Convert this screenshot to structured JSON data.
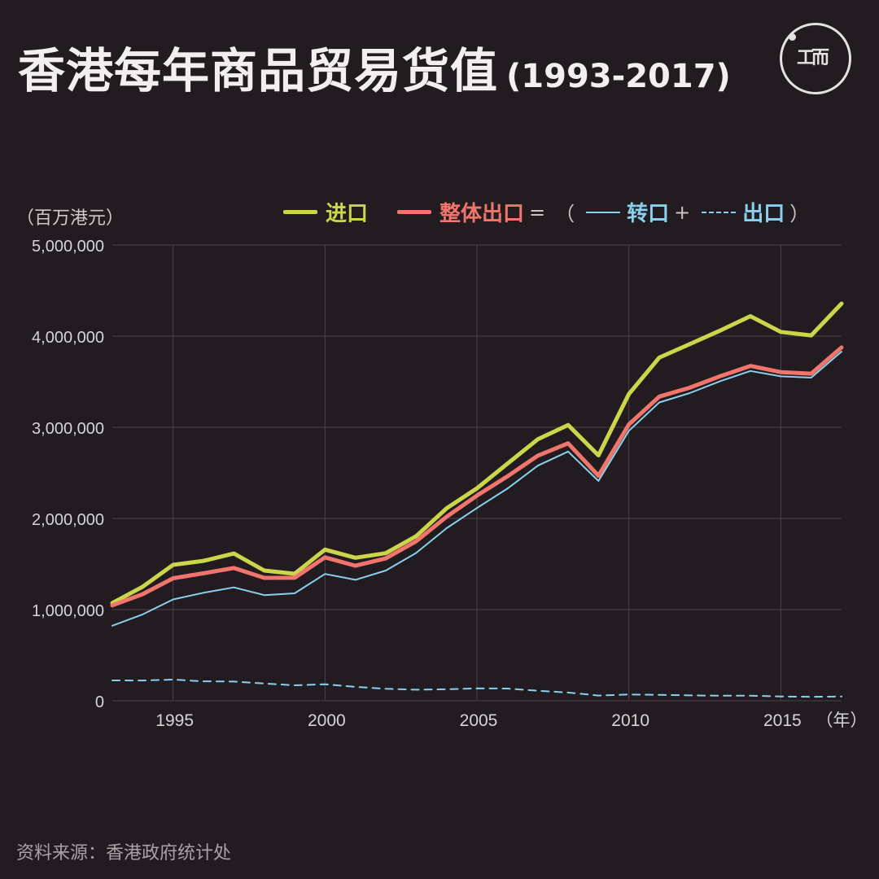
{
  "header": {
    "title": "香港每年商品贸易货值",
    "years": "(1993-2017)",
    "logo_marks": [
      "工",
      "而"
    ]
  },
  "unit_label": "（百万港元）",
  "legend": {
    "imports": "进口",
    "total_exports": "整体出口",
    "equals": "=",
    "open_paren": "（",
    "reexports": "转口",
    "plus": "+",
    "domestic_exports": "出口",
    "close_paren": "）"
  },
  "source": "资料来源：香港政府统计处",
  "colors": {
    "background": "#221c20",
    "imports": "#ccd64a",
    "total_exports": "#f1756c",
    "reexports": "#8ad0ee",
    "domestic_exports": "#8ad0ee",
    "grid": "#4a4347"
  },
  "chart_data": {
    "type": "line",
    "x": [
      1993,
      1994,
      1995,
      1996,
      1997,
      1998,
      1999,
      2000,
      2001,
      2002,
      2003,
      2004,
      2005,
      2006,
      2007,
      2008,
      2009,
      2010,
      2011,
      2012,
      2013,
      2014,
      2015,
      2016,
      2017
    ],
    "x_ticks": [
      "1995",
      "2000",
      "2005",
      "2010",
      "2015"
    ],
    "x_tick_values": [
      1995,
      2000,
      2005,
      2010,
      2015
    ],
    "x_unit": "（年）",
    "y_ticks": [
      "0",
      "1,000,000",
      "2,000,000",
      "3,000,000",
      "4,000,000",
      "5,000,000"
    ],
    "y_tick_values": [
      0,
      1000000,
      2000000,
      3000000,
      4000000,
      5000000
    ],
    "ylim": [
      0,
      5000000
    ],
    "xlim": [
      1993,
      2017
    ],
    "grid": true,
    "series": [
      {
        "name": "进口",
        "style": "thick",
        "color": "#ccd64a",
        "values": [
          1072000,
          1251000,
          1491000,
          1535000,
          1615000,
          1429000,
          1393000,
          1658000,
          1569000,
          1619000,
          1805000,
          2111000,
          2330000,
          2600000,
          2868000,
          3025000,
          2692000,
          3365000,
          3764000,
          3912000,
          4061000,
          4219000,
          4046000,
          4008000,
          4357000
        ]
      },
      {
        "name": "整体出口",
        "style": "thick",
        "color": "#f1756c",
        "values": [
          1046000,
          1170000,
          1344000,
          1398000,
          1456000,
          1348000,
          1349000,
          1573000,
          1481000,
          1562000,
          1749000,
          2019000,
          2251000,
          2461000,
          2688000,
          2824000,
          2469000,
          3031000,
          3337000,
          3434000,
          3560000,
          3673000,
          3605000,
          3588000,
          3876000
        ]
      },
      {
        "name": "转口",
        "style": "thin",
        "color": "#8ad0ee",
        "values": [
          823000,
          947000,
          1112000,
          1185000,
          1244000,
          1159000,
          1179000,
          1391000,
          1327000,
          1429000,
          1621000,
          1893000,
          2114000,
          2327000,
          2579000,
          2734000,
          2412000,
          2962000,
          3272000,
          3375000,
          3505000,
          3618000,
          3559000,
          3545000,
          3830000
        ]
      },
      {
        "name": "出口",
        "style": "dashed",
        "color": "#8ad0ee",
        "values": [
          223000,
          222000,
          232000,
          213000,
          211000,
          189000,
          170000,
          181000,
          153000,
          131000,
          121000,
          126000,
          136000,
          134000,
          110000,
          90000,
          57000,
          69000,
          65000,
          59000,
          55000,
          55000,
          47000,
          43000,
          46000
        ]
      }
    ]
  }
}
